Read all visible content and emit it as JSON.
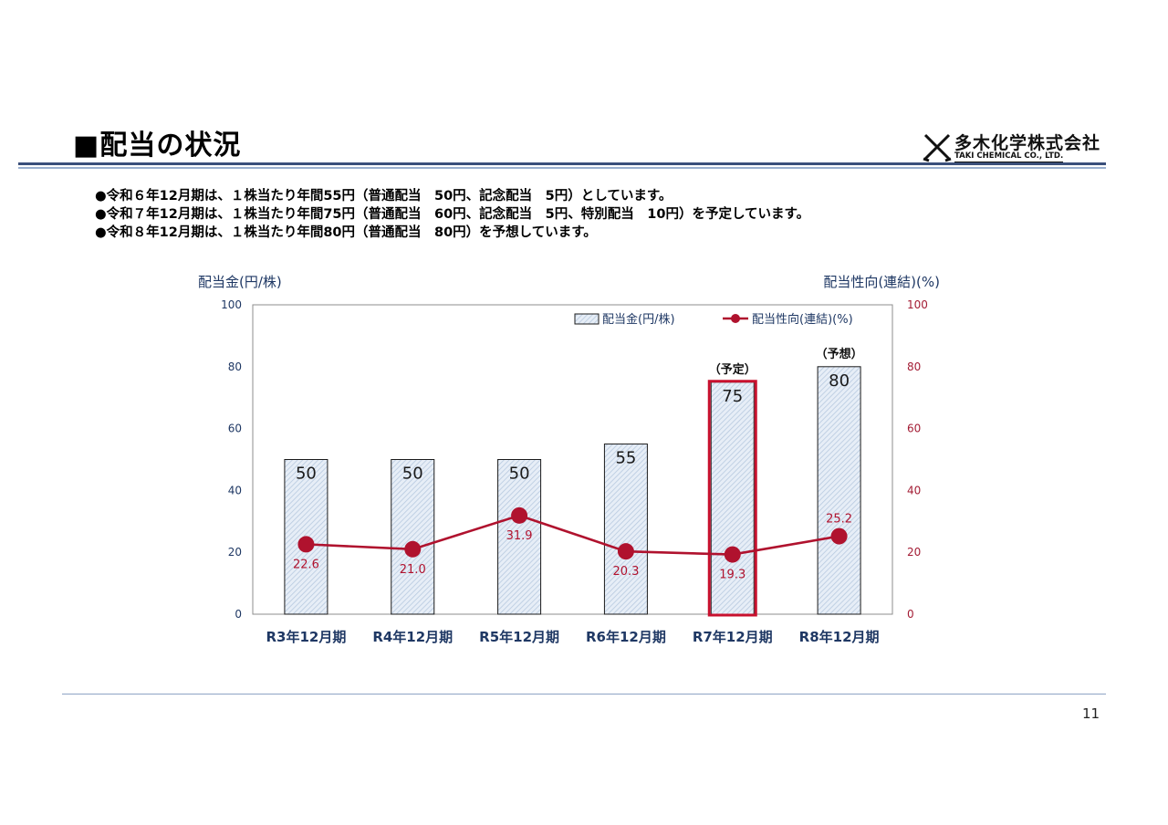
{
  "header": {
    "title": "■配当の状況",
    "company_jp": "多木化学株式会社",
    "company_en": "TAKI CHEMICAL CO., LTD."
  },
  "bullets": [
    "●令和６年12月期は、１株当たり年間55円（普通配当　50円、記念配当　5円）としています。",
    "●令和７年12月期は、１株当たり年間75円（普通配当　60円、記念配当　5円、特別配当　10円）を予定しています。",
    "●令和８年12月期は、１株当たり年間80円（普通配当　80円）を予想しています。"
  ],
  "chart_data": {
    "type": "bar",
    "categories": [
      "R3年12月期",
      "R4年12月期",
      "R5年12月期",
      "R6年12月期",
      "R7年12月期",
      "R8年12月期"
    ],
    "series": [
      {
        "name": "配当金(円/株)",
        "type": "bar",
        "axis": "left",
        "values": [
          50,
          50,
          50,
          55,
          75,
          80
        ],
        "color": "#dbe6f2",
        "edge": "#1b1b1b"
      },
      {
        "name": "配当性向(連結)(%)",
        "type": "line",
        "axis": "right",
        "values": [
          22.6,
          21.0,
          31.9,
          20.3,
          19.3,
          25.2
        ],
        "color": "#b0122e"
      }
    ],
    "ylabel_left": "配当金(円/株)",
    "ylabel_right": "配当性向(連結)(%)",
    "ylim": [
      0,
      100
    ],
    "y_ticks": [
      0,
      20,
      40,
      60,
      80,
      100
    ],
    "bar_labels": [
      "50",
      "50",
      "50",
      "55",
      "75",
      "80"
    ],
    "line_labels": [
      "22.6",
      "21.0",
      "31.9",
      "20.3",
      "19.3",
      "25.2"
    ],
    "annotations": [
      {
        "category": "R7年12月期",
        "text": "（予定）",
        "highlight": true,
        "highlight_color": "#c8102e"
      },
      {
        "category": "R8年12月期",
        "text": "（予想）"
      }
    ],
    "legend": {
      "position": "top-right"
    },
    "left_axis_color": "#1f3864",
    "right_axis_color": "#a31c34",
    "grid": false
  },
  "footer": {
    "page_number": "11"
  }
}
